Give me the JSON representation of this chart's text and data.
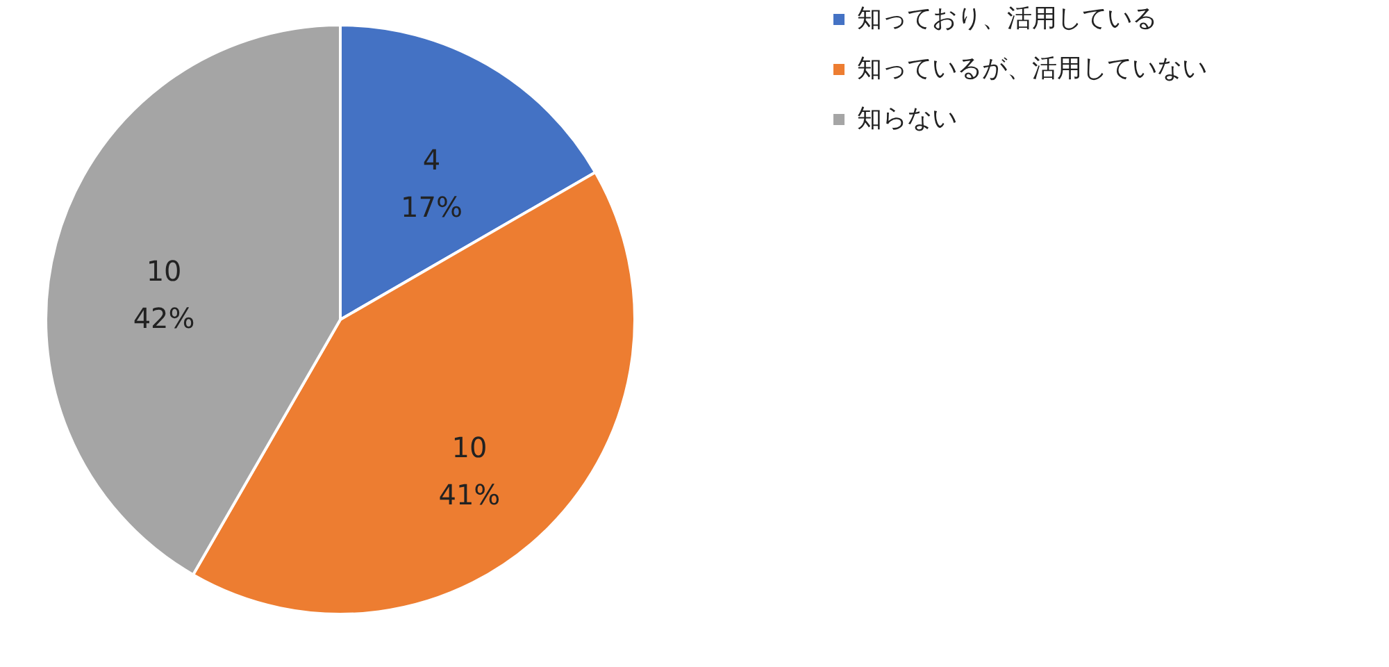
{
  "chart_data": {
    "type": "pie",
    "categories": [
      "知っており、活用している",
      "知っているが、活用していない",
      "知らない"
    ],
    "values": [
      4,
      10,
      10
    ],
    "colors": [
      "#4472c4",
      "#ed7d31",
      "#a5a5a5"
    ],
    "value_labels": [
      "4\n17%",
      "10\n41%",
      "10\n42%"
    ],
    "legend": "right"
  }
}
